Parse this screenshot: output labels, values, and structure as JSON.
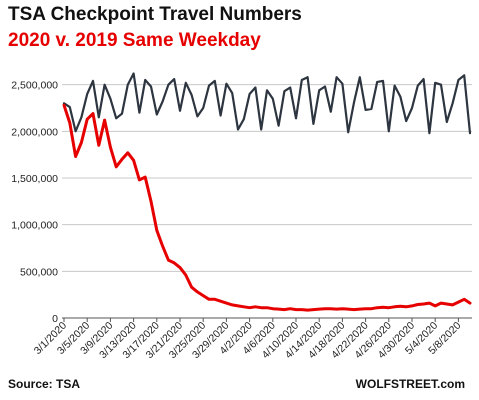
{
  "title": "TSA Checkpoint Travel Numbers",
  "subtitle": "2020 v. 2019 Same Weekday",
  "source": "Source: TSA",
  "credit": "WOLFSTREET.com",
  "colors": {
    "series_2019": "#2d3540",
    "series_2020": "#e60000",
    "subtitle": "#e60000",
    "grid": "#c8c8c8"
  },
  "chart_data": {
    "type": "line",
    "title": "TSA Checkpoint Travel Numbers",
    "subtitle": "2020 v. 2019 Same Weekday",
    "xlabel": "",
    "ylabel": "",
    "ylim": [
      0,
      2700000
    ],
    "grid": "horizontal",
    "yticks": [
      {
        "value": 0,
        "label": "0"
      },
      {
        "value": 500000,
        "label": "500,000"
      },
      {
        "value": 1000000,
        "label": "1,000,000"
      },
      {
        "value": 1500000,
        "label": "1,500,000"
      },
      {
        "value": 2000000,
        "label": "2,000,000"
      },
      {
        "value": 2500000,
        "label": "2,500,000"
      }
    ],
    "x": [
      "3/1/2020",
      "3/2/2020",
      "3/3/2020",
      "3/4/2020",
      "3/5/2020",
      "3/6/2020",
      "3/7/2020",
      "3/8/2020",
      "3/9/2020",
      "3/10/2020",
      "3/11/2020",
      "3/12/2020",
      "3/13/2020",
      "3/14/2020",
      "3/15/2020",
      "3/16/2020",
      "3/17/2020",
      "3/18/2020",
      "3/19/2020",
      "3/20/2020",
      "3/21/2020",
      "3/22/2020",
      "3/23/2020",
      "3/24/2020",
      "3/25/2020",
      "3/26/2020",
      "3/27/2020",
      "3/28/2020",
      "3/29/2020",
      "3/30/2020",
      "3/31/2020",
      "4/1/2020",
      "4/2/2020",
      "4/3/2020",
      "4/4/2020",
      "4/5/2020",
      "4/6/2020",
      "4/7/2020",
      "4/8/2020",
      "4/9/2020",
      "4/10/2020",
      "4/11/2020",
      "4/12/2020",
      "4/13/2020",
      "4/14/2020",
      "4/15/2020",
      "4/16/2020",
      "4/17/2020",
      "4/18/2020",
      "4/19/2020",
      "4/20/2020",
      "4/21/2020",
      "4/22/2020",
      "4/23/2020",
      "4/24/2020",
      "4/25/2020",
      "4/26/2020",
      "4/27/2020",
      "4/28/2020",
      "4/29/2020",
      "4/30/2020",
      "5/1/2020",
      "5/2/2020",
      "5/3/2020",
      "5/4/2020",
      "5/5/2020",
      "5/6/2020",
      "5/7/2020",
      "5/8/2020",
      "5/9/2020",
      "5/10/2020"
    ],
    "xtick_labels": [
      "3/1/2020",
      "3/5/2020",
      "3/9/2020",
      "3/13/2020",
      "3/17/2020",
      "3/21/2020",
      "3/25/2020",
      "3/29/2020",
      "4/2/2020",
      "4/6/2020",
      "4/10/2020",
      "4/14/2020",
      "4/18/2020",
      "4/22/2020",
      "4/26/2020",
      "4/30/2020",
      "5/4/2020",
      "5/8/2020"
    ],
    "series": [
      {
        "key": "2019",
        "color": "#2d3540",
        "values": [
          2300000,
          2260000,
          2000000,
          2150000,
          2400000,
          2540000,
          2150000,
          2500000,
          2350000,
          2140000,
          2190000,
          2500000,
          2620000,
          2200000,
          2550000,
          2480000,
          2180000,
          2320000,
          2500000,
          2560000,
          2220000,
          2520000,
          2390000,
          2160000,
          2250000,
          2490000,
          2540000,
          2170000,
          2510000,
          2410000,
          2020000,
          2130000,
          2400000,
          2470000,
          2020000,
          2440000,
          2350000,
          2060000,
          2430000,
          2470000,
          2140000,
          2550000,
          2580000,
          2080000,
          2440000,
          2480000,
          2210000,
          2580000,
          2510000,
          1990000,
          2310000,
          2580000,
          2230000,
          2240000,
          2530000,
          2540000,
          2000000,
          2490000,
          2370000,
          2110000,
          2250000,
          2490000,
          2560000,
          1980000,
          2520000,
          2500000,
          2100000,
          2300000,
          2550000,
          2600000,
          1980000
        ]
      },
      {
        "key": "2020",
        "color": "#e60000",
        "values": [
          2280000,
          2090000,
          1730000,
          1880000,
          2130000,
          2190000,
          1850000,
          2120000,
          1830000,
          1620000,
          1700000,
          1770000,
          1690000,
          1480000,
          1510000,
          1250000,
          940000,
          770000,
          620000,
          590000,
          540000,
          460000,
          330000,
          280000,
          240000,
          200000,
          200000,
          180000,
          160000,
          140000,
          130000,
          120000,
          110000,
          120000,
          110000,
          110000,
          100000,
          95000,
          90000,
          100000,
          90000,
          90000,
          85000,
          90000,
          95000,
          100000,
          100000,
          95000,
          100000,
          95000,
          90000,
          95000,
          100000,
          100000,
          110000,
          115000,
          110000,
          120000,
          125000,
          120000,
          130000,
          145000,
          150000,
          160000,
          130000,
          160000,
          150000,
          140000,
          170000,
          200000,
          160000
        ]
      }
    ]
  }
}
